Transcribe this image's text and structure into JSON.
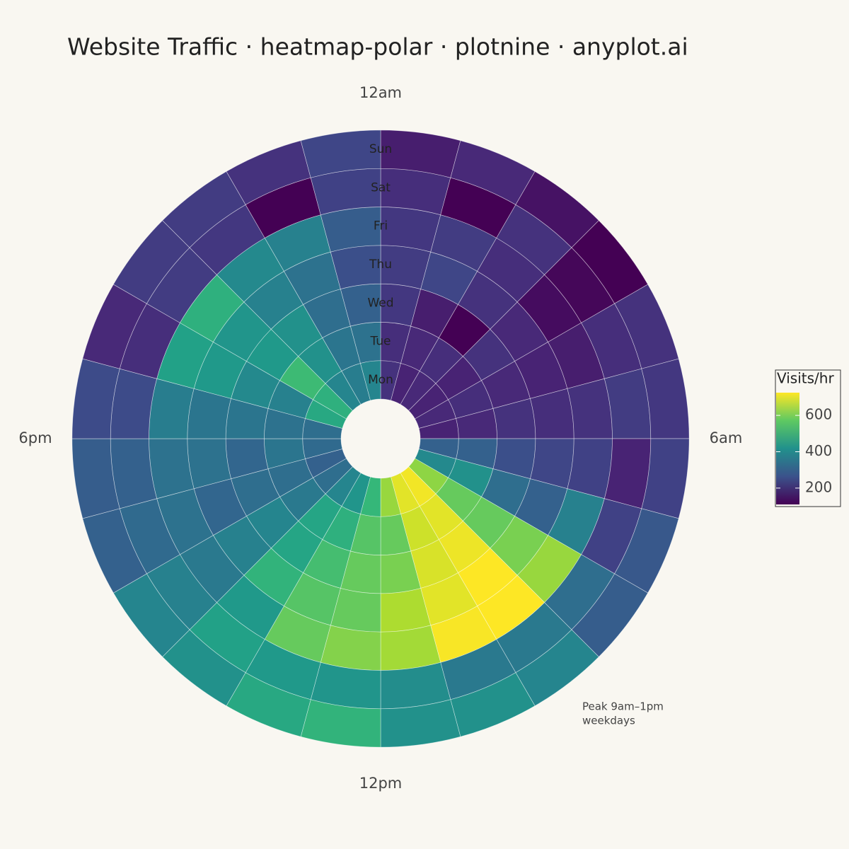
{
  "chart_data": {
    "type": "heatmap",
    "title": "Website Traffic · heatmap-polar · plotnine · anyplot.ai",
    "hours": [
      "12am",
      null,
      null,
      null,
      null,
      null,
      "6am",
      null,
      null,
      null,
      null,
      null,
      "12pm",
      null,
      null,
      null,
      null,
      null,
      "6pm",
      null,
      null,
      null,
      null,
      null
    ],
    "days": [
      "Mon",
      "Tue",
      "Wed",
      "Thu",
      "Fri",
      "Sat",
      "Sun"
    ],
    "values": [
      [
        200,
        170,
        180,
        170,
        180,
        170,
        300,
        400,
        620,
        715,
        700,
        630,
        520,
        430,
        390,
        330,
        300,
        320,
        330,
        480,
        500,
        390,
        370,
        390
      ],
      [
        190,
        180,
        190,
        170,
        190,
        180,
        300,
        420,
        580,
        700,
        680,
        580,
        560,
        500,
        470,
        360,
        330,
        350,
        340,
        380,
        530,
        420,
        350,
        340
      ],
      [
        210,
        160,
        110,
        200,
        180,
        200,
        260,
        330,
        580,
        710,
        690,
        600,
        580,
        540,
        470,
        390,
        330,
        310,
        350,
        400,
        440,
        420,
        330,
        300
      ],
      [
        220,
        240,
        200,
        180,
        170,
        190,
        240,
        300,
        600,
        725,
        700,
        650,
        580,
        560,
        510,
        380,
        310,
        340,
        350,
        440,
        430,
        380,
        340,
        260
      ],
      [
        210,
        220,
        190,
        130,
        160,
        200,
        230,
        380,
        630,
        725,
        720,
        640,
        610,
        580,
        440,
        360,
        340,
        340,
        370,
        460,
        500,
        400,
        380,
        290
      ],
      [
        190,
        110,
        200,
        120,
        190,
        220,
        170,
        230,
        330,
        360,
        360,
        410,
        430,
        440,
        460,
        380,
        320,
        300,
        250,
        190,
        220,
        210,
        110,
        230
      ],
      [
        160,
        180,
        140,
        110,
        200,
        210,
        230,
        280,
        290,
        390,
        420,
        420,
        510,
        480,
        420,
        390,
        300,
        290,
        250,
        180,
        220,
        220,
        200,
        240
      ]
    ],
    "colorbar": {
      "title": "Visits/hr",
      "colormap": "viridis",
      "lim": [
        110,
        725
      ],
      "ticks": [
        200,
        400,
        600
      ]
    },
    "annotation": [
      "Peak 9am–1pm",
      "weekdays"
    ]
  }
}
